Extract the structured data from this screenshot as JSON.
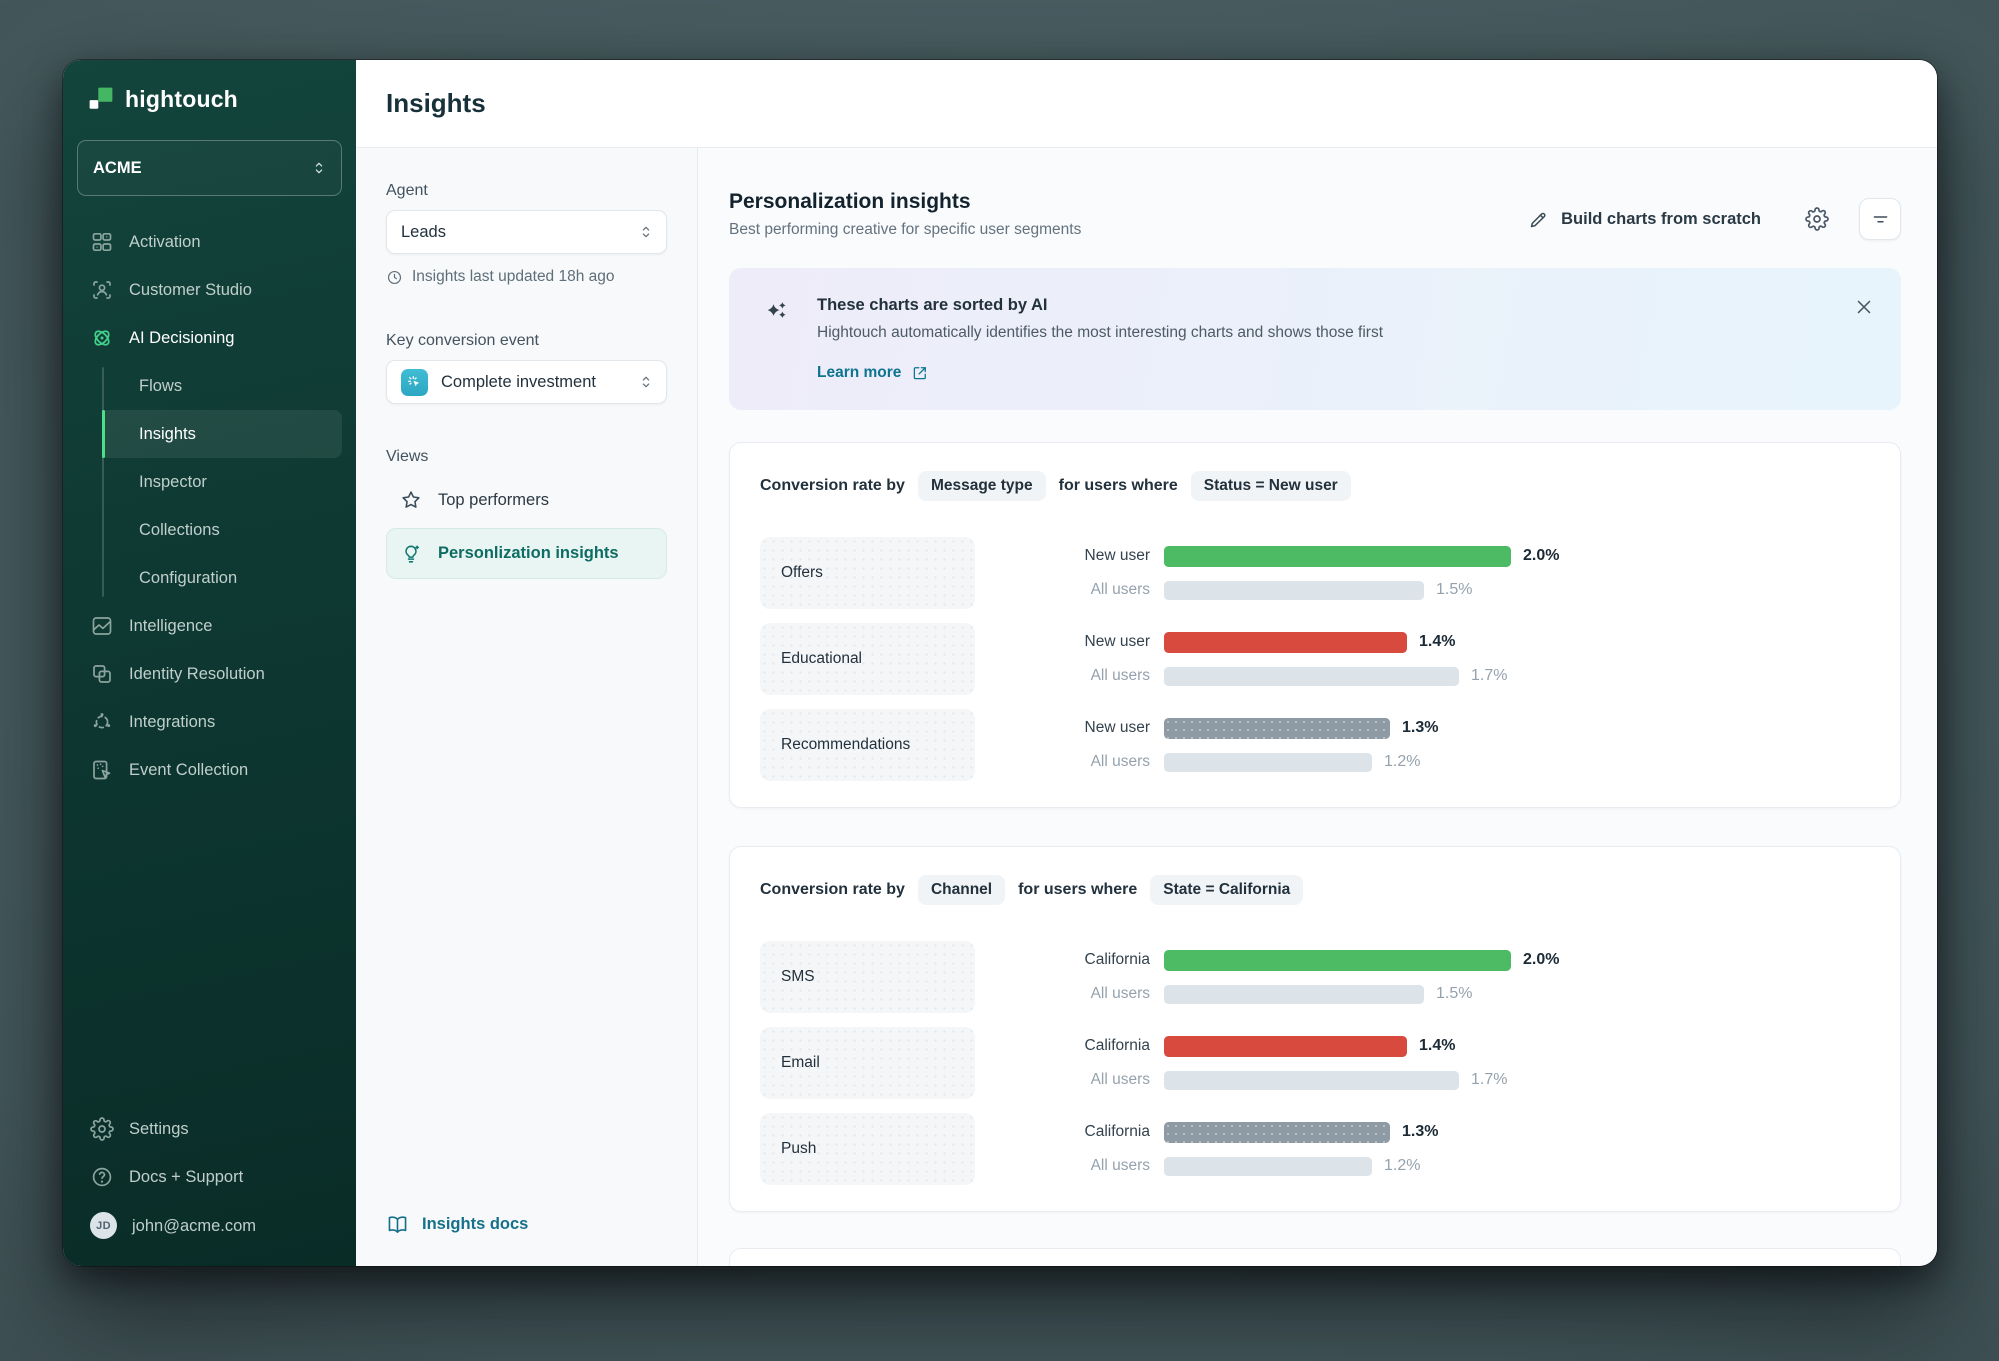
{
  "sidebar": {
    "logo_text": "hightouch",
    "workspace_name": "ACME",
    "nav": [
      {
        "label": "Activation",
        "icon": "activation"
      },
      {
        "label": "Customer Studio",
        "icon": "customer-studio"
      },
      {
        "label": "AI Decisioning",
        "icon": "ai-decisioning",
        "emphasis": true
      },
      {
        "label": "Flows",
        "sub": true
      },
      {
        "label": "Insights",
        "sub": true,
        "active": true
      },
      {
        "label": "Inspector",
        "sub": true
      },
      {
        "label": "Collections",
        "sub": true
      },
      {
        "label": "Configuration",
        "sub": true
      },
      {
        "label": "Intelligence",
        "icon": "intelligence"
      },
      {
        "label": "Identity Resolution",
        "icon": "identity-resolution"
      },
      {
        "label": "Integrations",
        "icon": "integrations"
      },
      {
        "label": "Event Collection",
        "icon": "event-collection"
      }
    ],
    "footer": [
      {
        "label": "Settings",
        "icon": "settings"
      },
      {
        "label": "Docs + Support",
        "icon": "help"
      }
    ],
    "user": {
      "initials": "JD",
      "email": "john@acme.com"
    }
  },
  "header": {
    "title": "Insights"
  },
  "filter_panel": {
    "agent_label": "Agent",
    "agent_value": "Leads",
    "last_updated": "Insights last updated 18h ago",
    "key_conversion_label": "Key conversion event",
    "key_conversion_value": "Complete investment",
    "views_label": "Views",
    "views": [
      {
        "label": "Top performers",
        "icon": "star",
        "active": false
      },
      {
        "label": "Personlization insights",
        "icon": "bulb",
        "active": true
      }
    ],
    "docs_link": "Insights docs"
  },
  "main": {
    "title": "Personalization insights",
    "subtitle": "Best performing creative for specific user segments",
    "build_button": "Build charts from scratch",
    "banner": {
      "title": "These charts are sorted by AI",
      "description": "Hightouch automatically identifies the most interesting charts and shows those first",
      "link_label": "Learn more"
    }
  },
  "chart_data": [
    {
      "type": "bar",
      "title": "Conversion rate by Message type for users where Status = New user",
      "header_parts": {
        "prefix": "Conversion rate by",
        "group_by": "Message type",
        "connector": "for users where",
        "filter": "Status = New user"
      },
      "categories": [
        "Offers",
        "Educational",
        "Recommendations"
      ],
      "series": [
        {
          "name": "New user",
          "values": [
            2.0,
            1.4,
            1.3
          ],
          "labels": [
            "2.0%",
            "1.4%",
            "1.3%"
          ],
          "colors": [
            "#4cbb63",
            "#d8493e",
            "#8e9aa4"
          ]
        },
        {
          "name": "All users",
          "values": [
            1.5,
            1.7,
            1.2
          ],
          "labels": [
            "1.5%",
            "1.7%",
            "1.2%"
          ],
          "colors": [
            "#dce3e9",
            "#dce3e9",
            "#dce3e9"
          ]
        }
      ],
      "xlim": [
        0,
        2.0
      ],
      "unit": "%",
      "grid": false,
      "legend_position": "inline"
    },
    {
      "type": "bar",
      "title": "Conversion rate by Channel for users where State = California",
      "header_parts": {
        "prefix": "Conversion rate by",
        "group_by": "Channel",
        "connector": "for users where",
        "filter": "State = California"
      },
      "categories": [
        "SMS",
        "Email",
        "Push"
      ],
      "series": [
        {
          "name": "California",
          "values": [
            2.0,
            1.4,
            1.3
          ],
          "labels": [
            "2.0%",
            "1.4%",
            "1.3%"
          ],
          "colors": [
            "#4cbb63",
            "#d8493e",
            "#8e9aa4"
          ]
        },
        {
          "name": "All users",
          "values": [
            1.5,
            1.7,
            1.2
          ],
          "labels": [
            "1.5%",
            "1.7%",
            "1.2%"
          ],
          "colors": [
            "#dce3e9",
            "#dce3e9",
            "#dce3e9"
          ]
        }
      ],
      "xlim": [
        0,
        2.0
      ],
      "unit": "%",
      "grid": false,
      "legend_position": "inline"
    }
  ],
  "colors": {
    "accent_teal": "#0e7490",
    "active_green": "#4be087",
    "bar_green": "#4cbb63",
    "bar_red": "#d8493e",
    "bar_gray": "#8e9aa4",
    "bar_track": "#dce3e9",
    "sidebar_bg": "#0e3832"
  }
}
